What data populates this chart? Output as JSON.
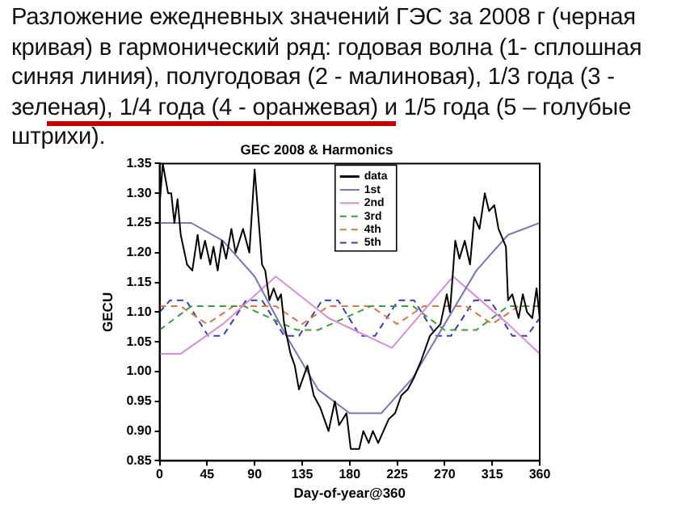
{
  "chart_data": {
    "type": "line",
    "title": "Разложение ежедневных значений ГЭС за 2008 г (черная кривая) в гармонический ряд: годовая волна (1- сплошная синяя линия), полугодовая (2 - малиновая), 1/3 года (3 - зеленая), 1/4 года (4 - оранжевая) и 1/5 года (5 – голубые штрихи).",
    "subtitle": "GEC 2008 & Harmonics",
    "xlabel": "Day-of-year@360",
    "ylabel": "GECU",
    "xlim": [
      0,
      360
    ],
    "xticks": [
      0,
      45,
      90,
      135,
      180,
      225,
      270,
      315,
      360
    ],
    "ylim": [
      0.85,
      1.35
    ],
    "yticks": [
      0.85,
      {
        "value": 0.9,
        "label": "0.90"
      },
      0.95,
      {
        "value": 1.0,
        "label": "1.00"
      },
      1.05,
      {
        "value": 1.1,
        "label": "1.10"
      },
      1.15,
      {
        "value": 1.2,
        "label": "1.20"
      },
      1.25,
      {
        "value": 1.3,
        "label": "1.30"
      },
      1.35
    ],
    "grid": false,
    "legend": "top",
    "marker": "none",
    "series": [
      {
        "name": "data",
        "color": "#000000",
        "line_style": "solid",
        "x": [
          0,
          3,
          8,
          11,
          14,
          17,
          20,
          26,
          31,
          36,
          39,
          43,
          48,
          51,
          55,
          59,
          63,
          68,
          72,
          79,
          85,
          90,
          94,
          97,
          100,
          104,
          108,
          112,
          115,
          118,
          124,
          128,
          132,
          140,
          146,
          152,
          160,
          166,
          170,
          177,
          181,
          189,
          193,
          198,
          202,
          207,
          212,
          217,
          223,
          229,
          235,
          241,
          248,
          256,
          266,
          272,
          275,
          280,
          284,
          289,
          294,
          298,
          303,
          308,
          312,
          317,
          321,
          328,
          330,
          334,
          340,
          344,
          348,
          353,
          357,
          360
        ],
        "values": [
          1.28,
          1.35,
          1.3,
          1.3,
          1.25,
          1.29,
          1.23,
          1.18,
          1.17,
          1.23,
          1.19,
          1.22,
          1.18,
          1.21,
          1.17,
          1.22,
          1.19,
          1.24,
          1.2,
          1.24,
          1.2,
          1.34,
          1.25,
          1.18,
          1.17,
          1.12,
          1.14,
          1.12,
          1.13,
          1.08,
          1.03,
          1.01,
          0.97,
          1.01,
          0.96,
          0.94,
          0.9,
          0.95,
          0.91,
          0.93,
          0.87,
          0.87,
          0.9,
          0.88,
          0.9,
          0.88,
          0.9,
          0.92,
          0.93,
          0.96,
          0.97,
          0.99,
          1.02,
          1.06,
          1.08,
          1.13,
          1.1,
          1.22,
          1.19,
          1.22,
          1.18,
          1.26,
          1.24,
          1.3,
          1.27,
          1.28,
          1.24,
          1.21,
          1.12,
          1.13,
          1.09,
          1.13,
          1.1,
          1.09,
          1.14,
          1.09
        ]
      },
      {
        "name": "1st",
        "color": "#7878b4",
        "line_style": "solid",
        "x": [
          0,
          30,
          60,
          90,
          120,
          150,
          180,
          210,
          240,
          270,
          300,
          330,
          360
        ],
        "values": [
          1.25,
          1.25,
          1.22,
          1.16,
          1.06,
          0.97,
          0.93,
          0.93,
          0.99,
          1.08,
          1.17,
          1.23,
          1.25
        ]
      },
      {
        "name": "2nd",
        "color": "#d68fd6",
        "line_style": "solid",
        "x": [
          0,
          20,
          60,
          110,
          160,
          220,
          278,
          330,
          360
        ],
        "values": [
          1.03,
          1.03,
          1.08,
          1.16,
          1.09,
          1.04,
          1.16,
          1.08,
          1.03
        ]
      },
      {
        "name": "3rd",
        "color": "#3c9a3c",
        "line_style": "dashed",
        "x": [
          0,
          30,
          80,
          130,
          150,
          200,
          240,
          270,
          300,
          330,
          360
        ],
        "values": [
          1.07,
          1.11,
          1.11,
          1.07,
          1.07,
          1.11,
          1.11,
          1.07,
          1.07,
          1.11,
          1.11
        ]
      },
      {
        "name": "4th",
        "color": "#d87840",
        "line_style": "dashed",
        "x": [
          0,
          20,
          45,
          70,
          110,
          135,
          160,
          200,
          225,
          250,
          290,
          315,
          340,
          360
        ],
        "values": [
          1.11,
          1.11,
          1.08,
          1.11,
          1.11,
          1.08,
          1.11,
          1.11,
          1.08,
          1.11,
          1.11,
          1.08,
          1.11,
          1.11
        ]
      },
      {
        "name": "5th",
        "color": "#3c3cb4",
        "line_style": "dashed",
        "x": [
          0,
          10,
          25,
          46,
          60,
          82,
          97,
          118,
          132,
          154,
          169,
          190,
          204,
          226,
          241,
          262,
          276,
          298,
          313,
          334,
          348,
          360
        ],
        "values": [
          1.1,
          1.12,
          1.12,
          1.06,
          1.06,
          1.12,
          1.12,
          1.06,
          1.06,
          1.12,
          1.12,
          1.06,
          1.06,
          1.12,
          1.12,
          1.06,
          1.06,
          1.12,
          1.12,
          1.06,
          1.06,
          1.09
        ]
      }
    ]
  }
}
